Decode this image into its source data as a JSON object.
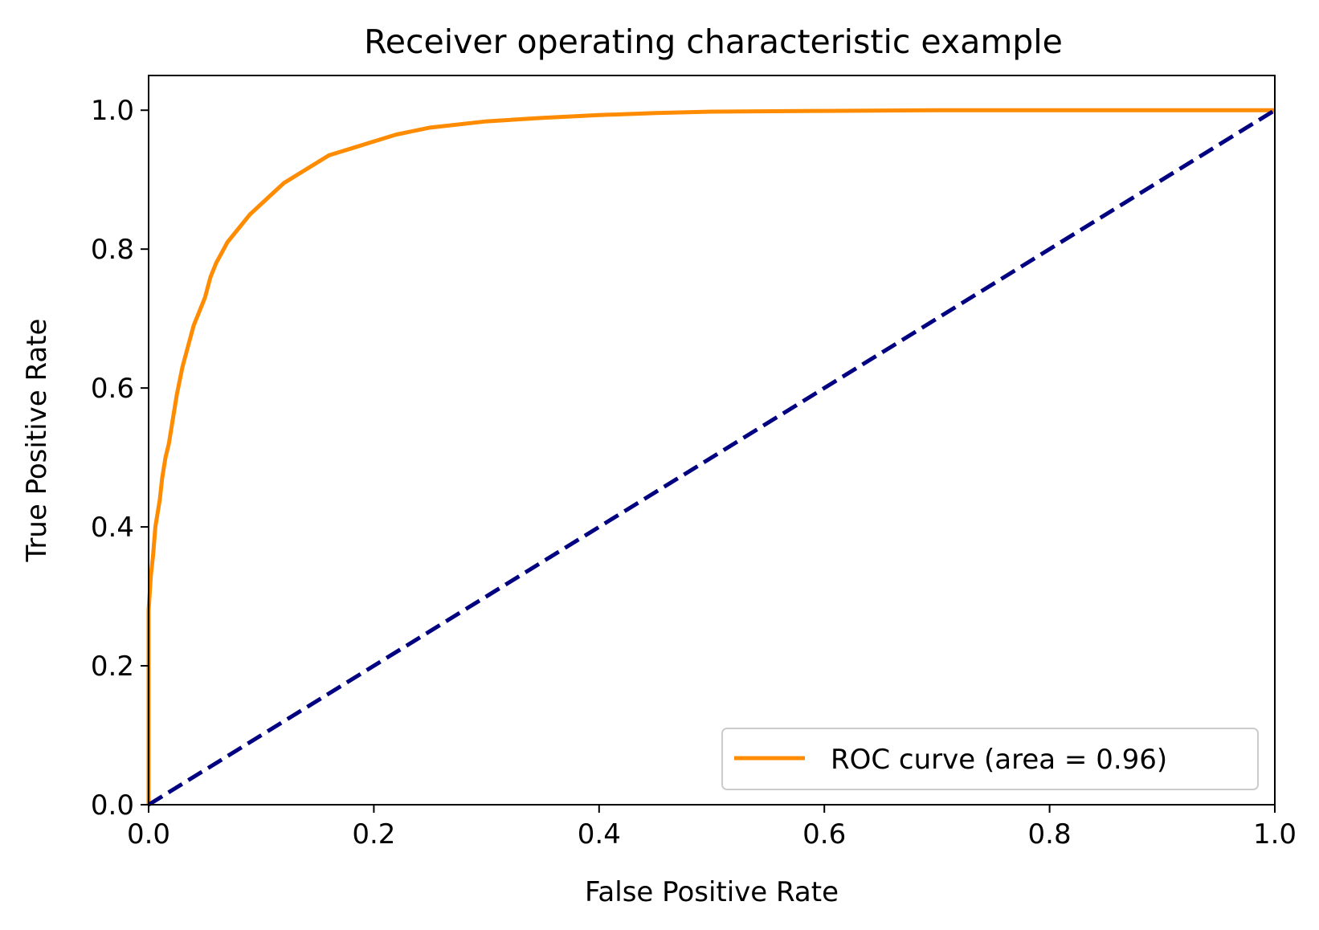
{
  "chart_data": {
    "type": "line",
    "title": "Receiver operating characteristic example",
    "xlabel": "False Positive Rate",
    "ylabel": "True Positive Rate",
    "xlim": [
      0.0,
      1.0
    ],
    "ylim": [
      0.0,
      1.05
    ],
    "xticks": [
      "0.0",
      "0.2",
      "0.4",
      "0.6",
      "0.8",
      "1.0"
    ],
    "yticks": [
      "0.0",
      "0.2",
      "0.4",
      "0.6",
      "0.8",
      "1.0"
    ],
    "grid": false,
    "legend_position": "lower right",
    "series": [
      {
        "name": "ROC curve (area = 0.96)",
        "color": "#ff8c00",
        "style": "solid",
        "x": [
          0.0,
          0.0,
          0.002,
          0.004,
          0.006,
          0.008,
          0.01,
          0.012,
          0.015,
          0.018,
          0.02,
          0.025,
          0.03,
          0.035,
          0.04,
          0.045,
          0.05,
          0.055,
          0.06,
          0.065,
          0.07,
          0.08,
          0.09,
          0.1,
          0.11,
          0.12,
          0.13,
          0.14,
          0.15,
          0.16,
          0.17,
          0.18,
          0.2,
          0.22,
          0.25,
          0.3,
          0.35,
          0.4,
          0.45,
          0.5,
          0.6,
          0.7,
          0.8,
          0.9,
          1.0
        ],
        "y": [
          0.0,
          0.28,
          0.33,
          0.36,
          0.4,
          0.42,
          0.44,
          0.47,
          0.5,
          0.52,
          0.54,
          0.59,
          0.63,
          0.66,
          0.69,
          0.71,
          0.73,
          0.76,
          0.78,
          0.795,
          0.81,
          0.83,
          0.85,
          0.865,
          0.88,
          0.895,
          0.905,
          0.915,
          0.925,
          0.935,
          0.94,
          0.945,
          0.955,
          0.965,
          0.975,
          0.984,
          0.989,
          0.993,
          0.996,
          0.998,
          0.999,
          1.0,
          1.0,
          1.0,
          1.0
        ]
      },
      {
        "name": "",
        "color": "#000080",
        "style": "dashed",
        "x": [
          0.0,
          1.0
        ],
        "y": [
          0.0,
          1.0
        ]
      }
    ]
  }
}
